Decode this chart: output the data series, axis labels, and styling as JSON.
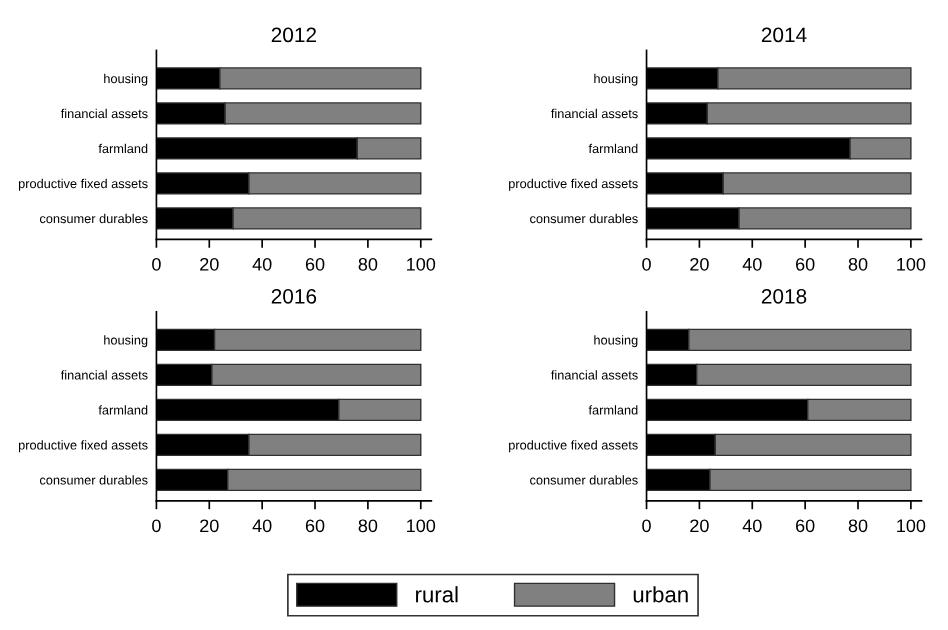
{
  "chart_data": [
    {
      "type": "bar",
      "orientation": "horizontal",
      "stacked": true,
      "title": "2012",
      "categories": [
        "housing",
        "financial assets",
        "farmland",
        "productive fixed assets",
        "consumer durables"
      ],
      "series": [
        {
          "name": "rural",
          "color": "#000000",
          "values": [
            24,
            26,
            76,
            35,
            29
          ]
        },
        {
          "name": "urban",
          "color": "#808080",
          "values": [
            76,
            74,
            24,
            65,
            71
          ]
        }
      ],
      "xlim": [
        0,
        104
      ],
      "xticks": [
        0,
        20,
        40,
        60,
        80,
        100
      ],
      "grid": false,
      "legend": "bottom"
    },
    {
      "type": "bar",
      "orientation": "horizontal",
      "stacked": true,
      "title": "2014",
      "categories": [
        "housing",
        "financial assets",
        "farmland",
        "productive fixed assets",
        "consumer durables"
      ],
      "series": [
        {
          "name": "rural",
          "color": "#000000",
          "values": [
            27,
            23,
            77,
            29,
            35
          ]
        },
        {
          "name": "urban",
          "color": "#808080",
          "values": [
            73,
            77,
            23,
            71,
            65
          ]
        }
      ],
      "xlim": [
        0,
        104
      ],
      "xticks": [
        0,
        20,
        40,
        60,
        80,
        100
      ],
      "grid": false
    },
    {
      "type": "bar",
      "orientation": "horizontal",
      "stacked": true,
      "title": "2016",
      "categories": [
        "housing",
        "financial assets",
        "farmland",
        "productive fixed assets",
        "consumer durables"
      ],
      "series": [
        {
          "name": "rural",
          "color": "#000000",
          "values": [
            22,
            21,
            69,
            35,
            27
          ]
        },
        {
          "name": "urban",
          "color": "#808080",
          "values": [
            78,
            79,
            31,
            65,
            73
          ]
        }
      ],
      "xlim": [
        0,
        104
      ],
      "xticks": [
        0,
        20,
        40,
        60,
        80,
        100
      ],
      "grid": false
    },
    {
      "type": "bar",
      "orientation": "horizontal",
      "stacked": true,
      "title": "2018",
      "categories": [
        "housing",
        "financial assets",
        "farmland",
        "productive fixed assets",
        "consumer durables"
      ],
      "series": [
        {
          "name": "rural",
          "color": "#000000",
          "values": [
            16,
            19,
            61,
            26,
            24
          ]
        },
        {
          "name": "urban",
          "color": "#808080",
          "values": [
            84,
            81,
            39,
            74,
            76
          ]
        }
      ],
      "xlim": [
        0,
        104
      ],
      "xticks": [
        0,
        20,
        40,
        60,
        80,
        100
      ],
      "grid": false
    }
  ]
}
